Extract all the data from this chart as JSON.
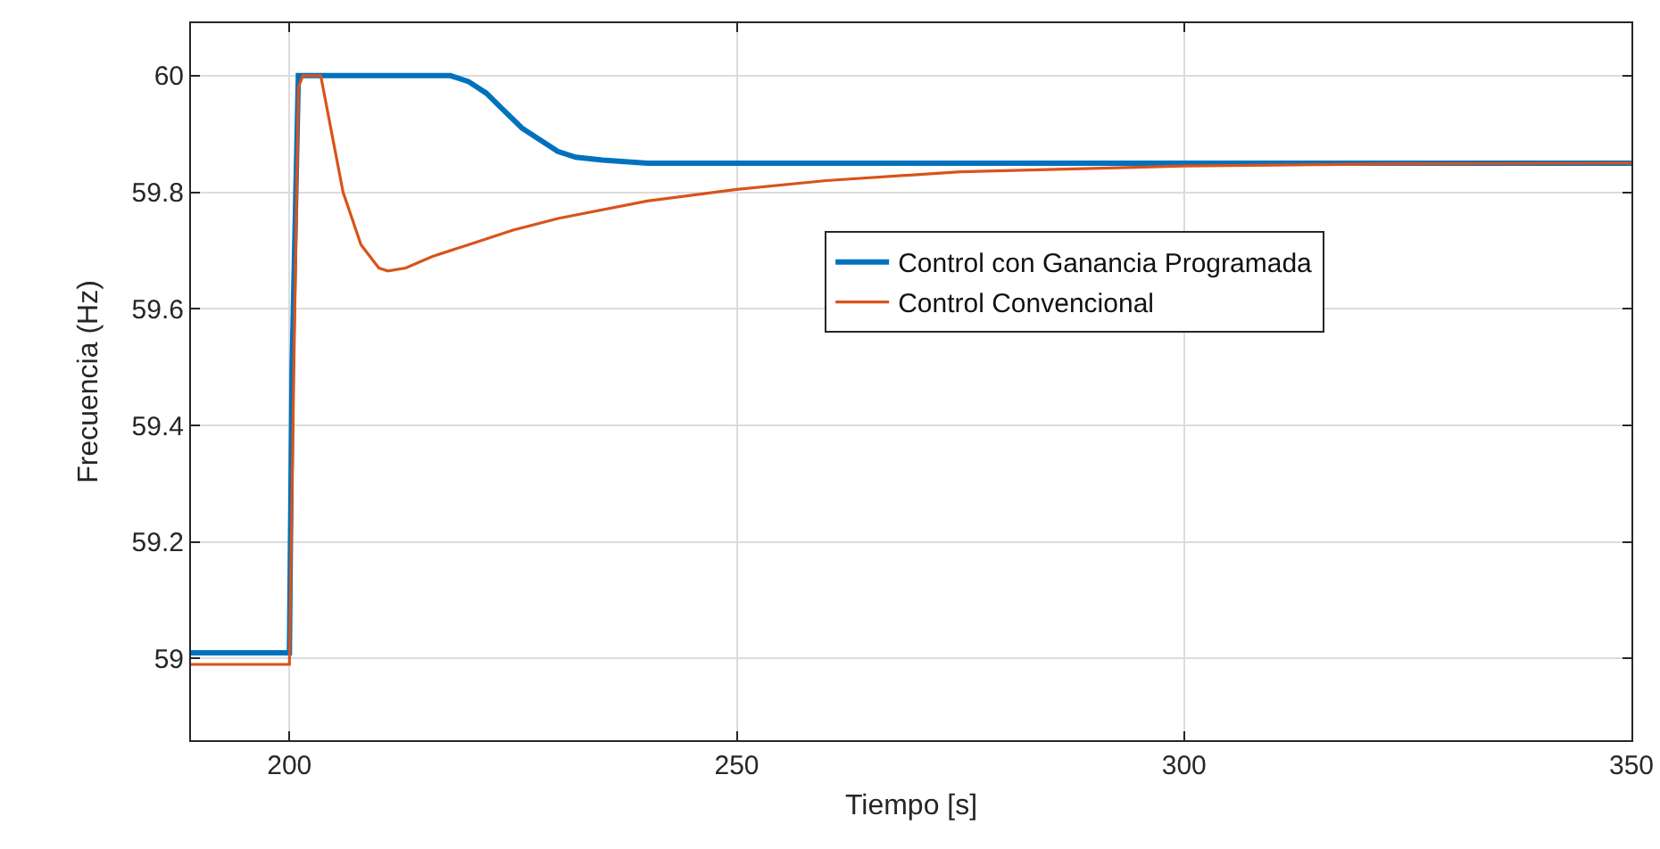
{
  "chart_data": {
    "type": "line",
    "xlabel": "Tiempo [s]",
    "ylabel": "Frecuencia (Hz)",
    "xlim": [
      189,
      350
    ],
    "xticks": [
      200,
      250,
      300,
      350
    ],
    "ylim": [
      58.86,
      60.09
    ],
    "yticks": [
      59,
      59.2,
      59.4,
      59.6,
      59.8,
      60
    ],
    "grid": true,
    "legend": "right",
    "line_style": "solid",
    "series": [
      {
        "name": "Control con Ganancia Programada",
        "color": "#0072bd",
        "x": [
          189,
          200,
          200.3,
          201,
          218,
          220,
          222,
          224,
          226,
          228,
          230,
          232,
          235,
          240,
          350
        ],
        "values": [
          59.01,
          59.01,
          59.5,
          60,
          60,
          59.99,
          59.97,
          59.94,
          59.91,
          59.89,
          59.87,
          59.86,
          59.855,
          59.85,
          59.85
        ]
      },
      {
        "name": "Control Convencional",
        "color": "#d95319",
        "x": [
          189,
          200,
          200.5,
          201,
          201.5,
          203.5,
          204.5,
          206,
          208,
          210,
          211,
          213,
          216,
          220,
          225,
          230,
          240,
          250,
          260,
          275,
          300,
          325,
          350
        ],
        "values": [
          58.99,
          58.99,
          59.5,
          59.98,
          60,
          60,
          59.92,
          59.8,
          59.71,
          59.67,
          59.665,
          59.67,
          59.69,
          59.71,
          59.735,
          59.755,
          59.785,
          59.805,
          59.82,
          59.835,
          59.845,
          59.849,
          59.85
        ]
      }
    ]
  }
}
